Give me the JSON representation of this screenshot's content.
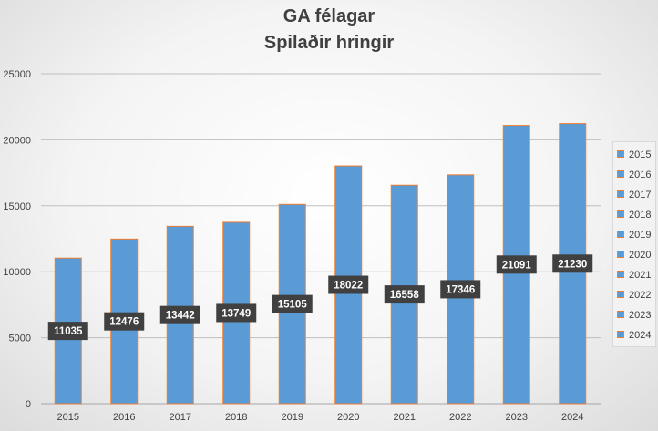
{
  "chart_data": {
    "type": "bar",
    "title": "GA félagar",
    "subtitle": "Spilaðir hringir",
    "categories": [
      "2015",
      "2016",
      "2017",
      "2018",
      "2019",
      "2020",
      "2021",
      "2022",
      "2023",
      "2024"
    ],
    "values": [
      11035,
      12476,
      13442,
      13749,
      15105,
      18022,
      16558,
      17346,
      21091,
      21230
    ],
    "ylim": [
      0,
      25000
    ],
    "yticks": [
      "0",
      "5000",
      "10000",
      "15000",
      "20000",
      "25000"
    ],
    "grid": true,
    "legend": {
      "position": "right",
      "entries": [
        "2015",
        "2016",
        "2017",
        "2018",
        "2019",
        "2020",
        "2021",
        "2022",
        "2023",
        "2024"
      ]
    },
    "colors": {
      "bar_fill": "#5b9bd5",
      "bar_border": "#ed7d31",
      "label_bg": "#404040",
      "label_text": "#ffffff",
      "gridline": "#bfbfbf",
      "text": "#404040"
    }
  }
}
